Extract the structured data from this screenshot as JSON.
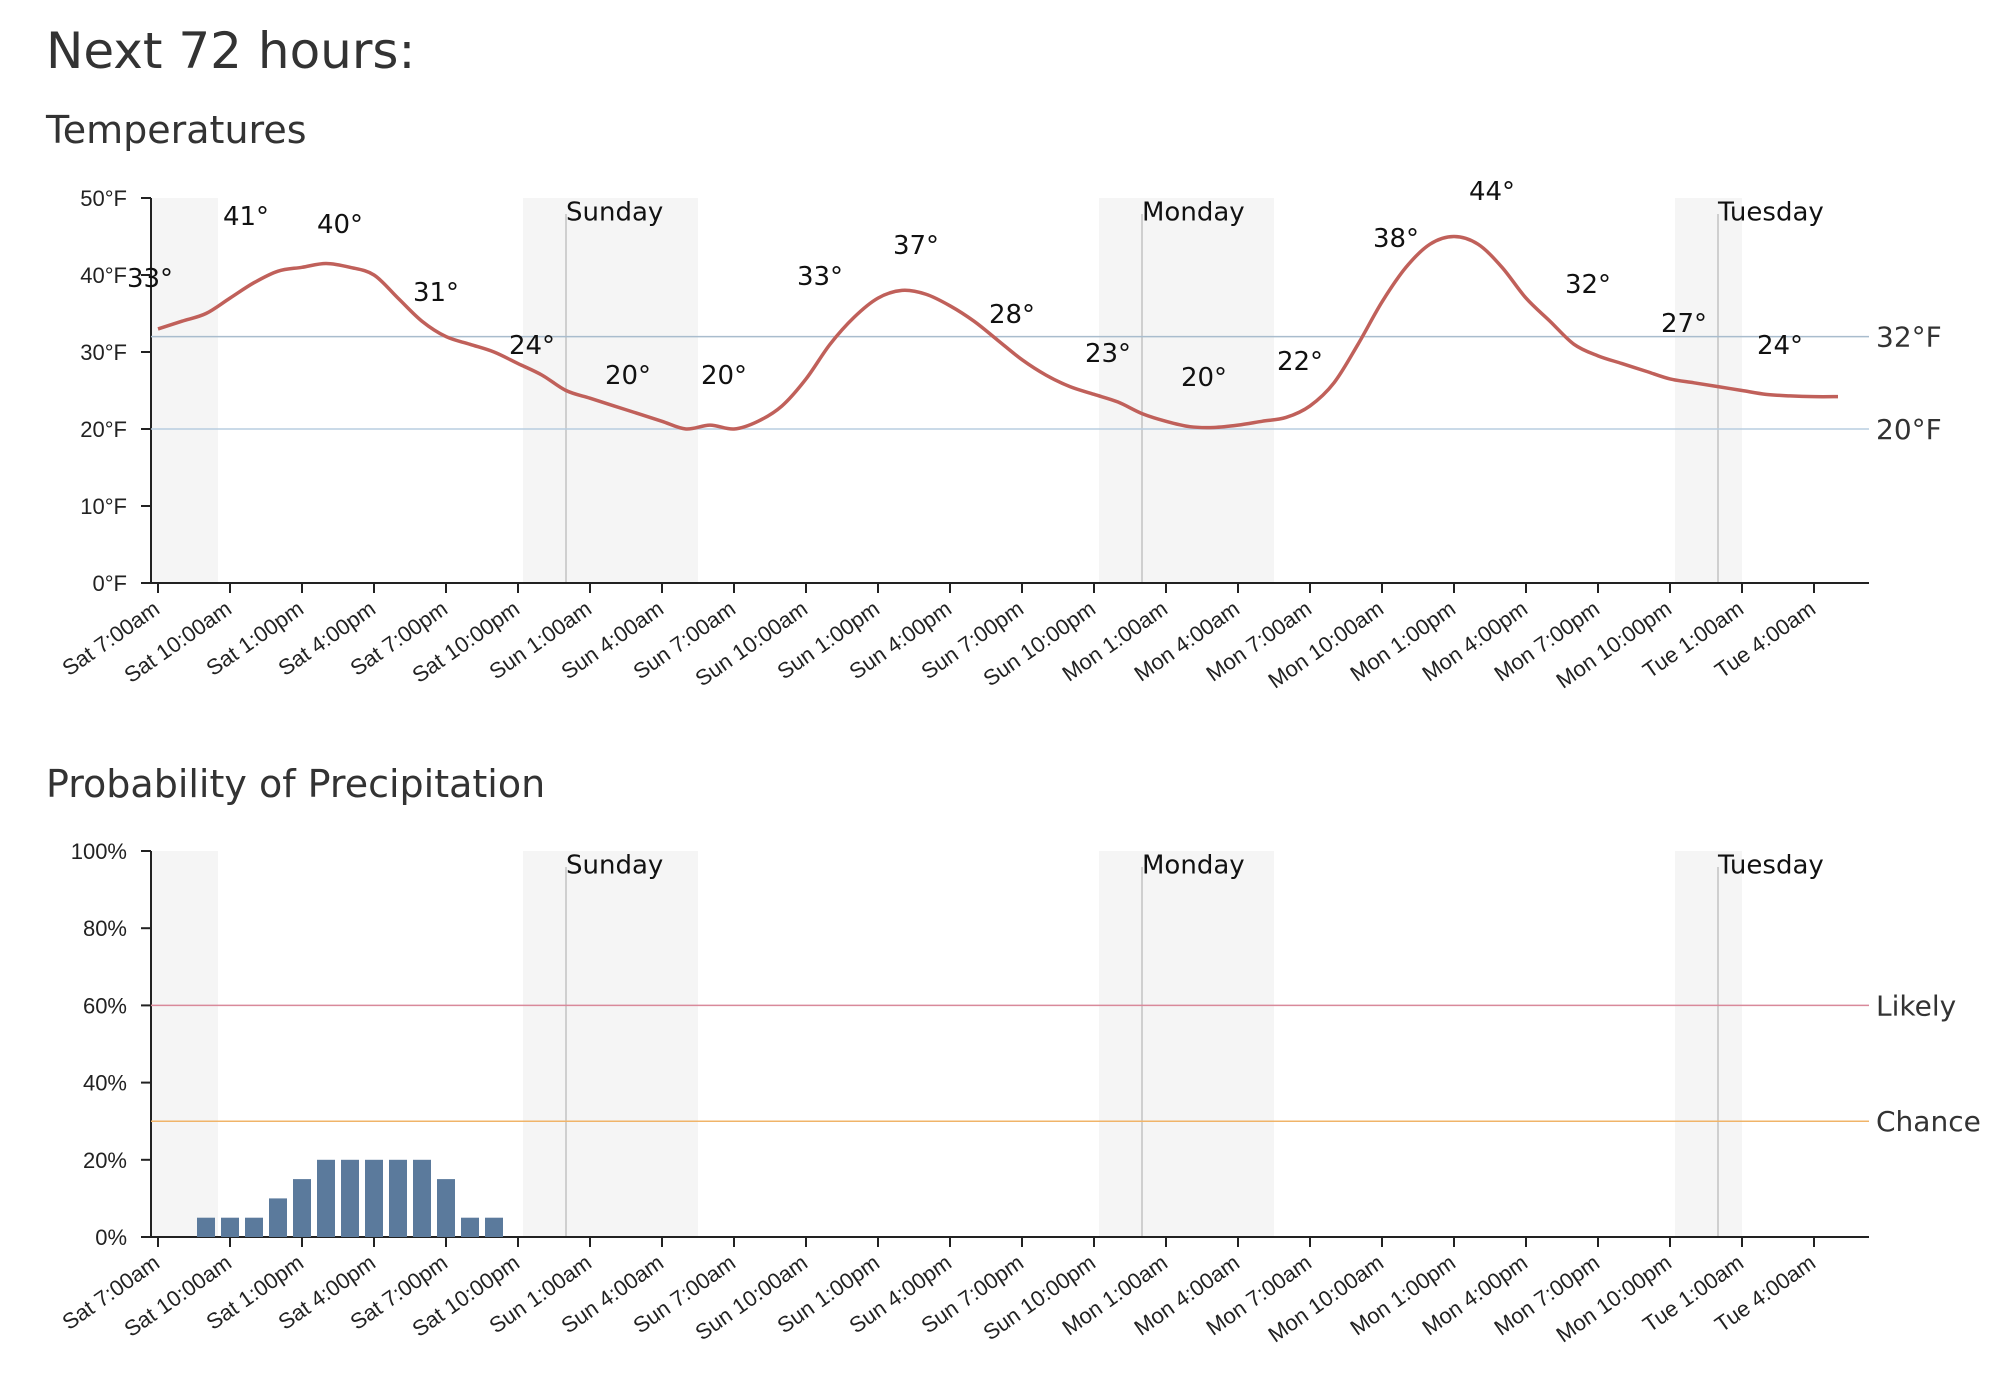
{
  "page": {
    "title": "Next 72 hours:",
    "temp_section_title": "Temperatures",
    "precip_section_title": "Probability of Precipitation"
  },
  "colors": {
    "temp_line": "#c0605a",
    "bar": "#5b7a9c",
    "ref_32": "#a9bccd",
    "ref_20": "#b8cde0",
    "likely": "#d9899a",
    "chance": "#f0b469",
    "likely_text": "#5a1a22",
    "chance_text": "#4a2a06",
    "night_shade": "#f5f5f5",
    "day_divider": "#cfcfcf",
    "axis": "#222222"
  },
  "chart_data": [
    {
      "type": "line",
      "title": "Temperatures",
      "ylim": [
        0,
        50
      ],
      "y_ticks": [
        "0°F",
        "10°F",
        "20°F",
        "30°F",
        "40°F",
        "50°F"
      ],
      "x_tick_labels": [
        "Sat 7:00am",
        "Sat 10:00am",
        "Sat 1:00pm",
        "Sat 4:00pm",
        "Sat 7:00pm",
        "Sat 10:00pm",
        "Sun 1:00am",
        "Sun 4:00am",
        "Sun 7:00am",
        "Sun 10:00am",
        "Sun 1:00pm",
        "Sun 4:00pm",
        "Sun 7:00pm",
        "Sun 10:00pm",
        "Mon 1:00am",
        "Mon 4:00am",
        "Mon 7:00am",
        "Mon 10:00am",
        "Mon 1:00pm",
        "Mon 4:00pm",
        "Mon 7:00pm",
        "Mon 10:00pm",
        "Tue 1:00am",
        "Tue 4:00am"
      ],
      "day_labels": [
        "Sunday",
        "Monday",
        "Tuesday"
      ],
      "series": [
        {
          "values": [
            33,
            34,
            35,
            37,
            39,
            40.5,
            41,
            41.5,
            41,
            40,
            37,
            34,
            32,
            31,
            30,
            28.5,
            27,
            25,
            24,
            23,
            22,
            21,
            20,
            20.5,
            20,
            21,
            23,
            26.5,
            31,
            34.5,
            37,
            38,
            37.5,
            36,
            34,
            31.5,
            29,
            27,
            25.5,
            24.5,
            23.5,
            22,
            21,
            20.3,
            20.2,
            20.5,
            21,
            21.5,
            23,
            26,
            31,
            36.5,
            41,
            44,
            45,
            44,
            41,
            37,
            34,
            31,
            29.5,
            28.5,
            27.5,
            26.5,
            26,
            25.5,
            25,
            24.5,
            24.3,
            24.2,
            24.2
          ]
        }
      ],
      "point_labels": [
        "33°",
        "41°",
        "40°",
        "31°",
        "24°",
        "20°",
        "20°",
        "33°",
        "37°",
        "28°",
        "23°",
        "20°",
        "22°",
        "38°",
        "44°",
        "32°",
        "27°",
        "24°"
      ],
      "reference_lines": [
        {
          "value": 32,
          "label": "32°F"
        },
        {
          "value": 20,
          "label": "20°F"
        }
      ],
      "grid": false,
      "legend": "none"
    },
    {
      "type": "bar",
      "title": "Probability of Precipitation",
      "ylim": [
        0,
        100
      ],
      "y_ticks": [
        "0%",
        "20%",
        "40%",
        "60%",
        "80%",
        "100%"
      ],
      "x_tick_labels": [
        "Sat 7:00am",
        "Sat 10:00am",
        "Sat 1:00pm",
        "Sat 4:00pm",
        "Sat 7:00pm",
        "Sat 10:00pm",
        "Sun 1:00am",
        "Sun 4:00am",
        "Sun 7:00am",
        "Sun 10:00am",
        "Sun 1:00pm",
        "Sun 4:00pm",
        "Sun 7:00pm",
        "Sun 10:00pm",
        "Mon 1:00am",
        "Mon 4:00am",
        "Mon 7:00am",
        "Mon 10:00am",
        "Mon 1:00pm",
        "Mon 4:00pm",
        "Mon 7:00pm",
        "Mon 10:00pm",
        "Tue 1:00am",
        "Tue 4:00am"
      ],
      "day_labels": [
        "Sunday",
        "Monday",
        "Tuesday"
      ],
      "series": [
        {
          "values": [
            0,
            0,
            5,
            5,
            5,
            10,
            15,
            20,
            20,
            20,
            20,
            20,
            15,
            5,
            5,
            0
          ]
        }
      ],
      "reference_lines": [
        {
          "value": 60,
          "label": "Likely"
        },
        {
          "value": 30,
          "label": "Chance"
        }
      ],
      "grid": false,
      "legend": "none"
    }
  ]
}
